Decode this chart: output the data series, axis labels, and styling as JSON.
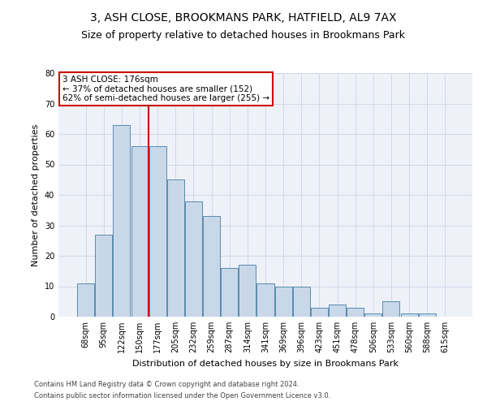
{
  "title_line1": "3, ASH CLOSE, BROOKMANS PARK, HATFIELD, AL9 7AX",
  "title_line2": "Size of property relative to detached houses in Brookmans Park",
  "xlabel": "Distribution of detached houses by size in Brookmans Park",
  "ylabel": "Number of detached properties",
  "categories": [
    "68sqm",
    "95sqm",
    "122sqm",
    "150sqm",
    "177sqm",
    "205sqm",
    "232sqm",
    "259sqm",
    "287sqm",
    "314sqm",
    "341sqm",
    "369sqm",
    "396sqm",
    "423sqm",
    "451sqm",
    "478sqm",
    "506sqm",
    "533sqm",
    "560sqm",
    "588sqm",
    "615sqm"
  ],
  "values": [
    11,
    27,
    63,
    56,
    56,
    45,
    38,
    33,
    16,
    17,
    11,
    10,
    10,
    3,
    4,
    3,
    1,
    5,
    1,
    1,
    0
  ],
  "bar_color": "#c8d8e8",
  "bar_edge_color": "#5a8ab0",
  "vline_x_index": 4,
  "vline_color": "#cc0000",
  "annotation_text": "3 ASH CLOSE: 176sqm\n← 37% of detached houses are smaller (152)\n62% of semi-detached houses are larger (255) →",
  "annotation_box_color": "#ffffff",
  "annotation_box_edge_color": "#cc0000",
  "ylim": [
    0,
    80
  ],
  "yticks": [
    0,
    10,
    20,
    30,
    40,
    50,
    60,
    70,
    80
  ],
  "grid_color": "#d0d8e8",
  "bg_color": "#eef2f8",
  "footer_line1": "Contains HM Land Registry data © Crown copyright and database right 2024.",
  "footer_line2": "Contains public sector information licensed under the Open Government Licence v3.0.",
  "title_fontsize": 10,
  "subtitle_fontsize": 9,
  "axis_label_fontsize": 8,
  "tick_fontsize": 7,
  "annotation_fontsize": 7.5,
  "footer_fontsize": 6,
  "bar_width": 0.95
}
